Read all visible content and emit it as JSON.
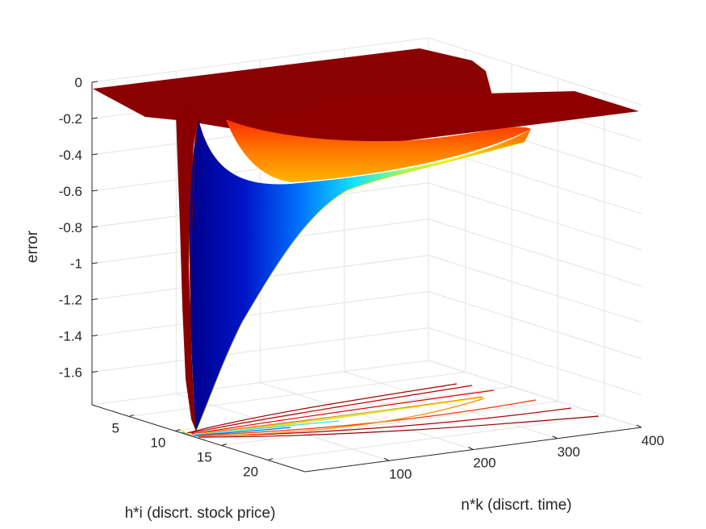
{
  "chart_data": {
    "type": "surface",
    "title": "",
    "xlabel": "h*i (discrt. stock price)",
    "ylabel": "n*k (discrt. time)",
    "zlabel": "error",
    "x_ticks": [
      "5",
      "10",
      "15",
      "20"
    ],
    "y_ticks": [
      "100",
      "200",
      "300",
      "400"
    ],
    "z_ticks": [
      "0",
      "-0.2",
      "-0.4",
      "-0.6",
      "-0.8",
      "-1",
      "-1.2",
      "-1.4",
      "-1.6"
    ],
    "x_range": [
      1,
      24
    ],
    "y_range": [
      0,
      400
    ],
    "z_range": [
      -1.78,
      0
    ],
    "colormap": "jet",
    "grid": true,
    "contour_projection": true,
    "min_error": -1.75,
    "min_location": {
      "x": 12,
      "y": 0
    }
  }
}
